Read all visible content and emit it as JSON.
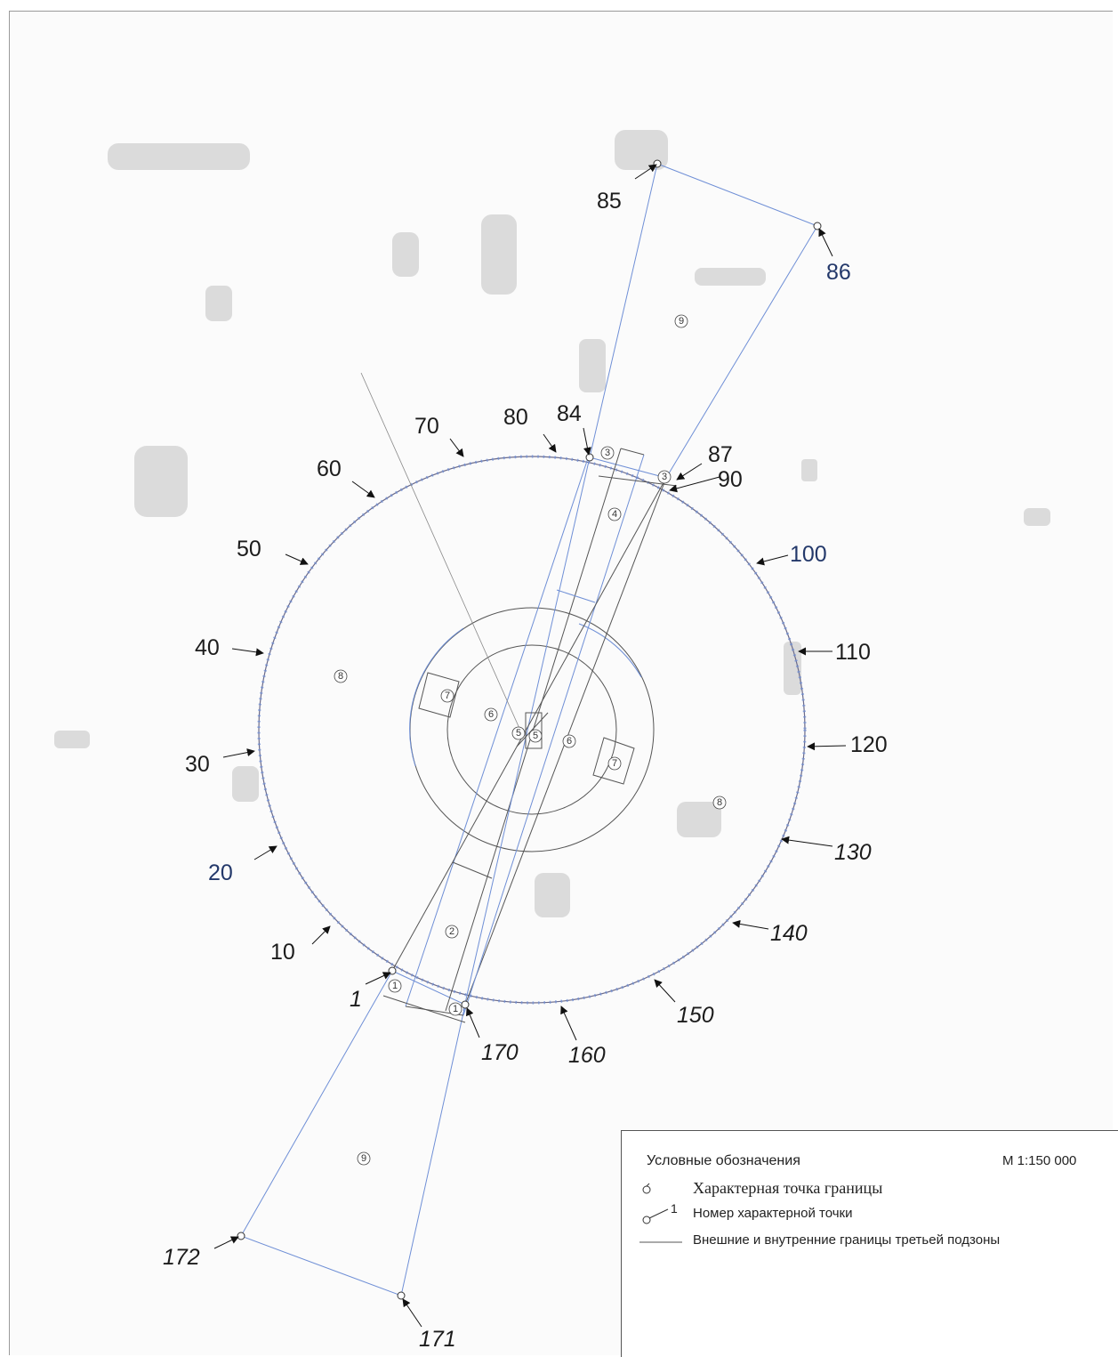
{
  "point_labels": {
    "p1": "1",
    "p10": "10",
    "p20": "20",
    "p30": "30",
    "p40": "40",
    "p50": "50",
    "p60": "60",
    "p70": "70",
    "p80": "80",
    "p84": "84",
    "p85": "85",
    "p86": "86",
    "p87": "87",
    "p90": "90",
    "p100": "100",
    "p110": "110",
    "p120": "120",
    "p130": "130",
    "p140": "140",
    "p150": "150",
    "p160": "160",
    "p170": "170",
    "p171": "171",
    "p172": "172"
  },
  "zone_numbers": {
    "z1": "1",
    "z2": "2",
    "z3": "3",
    "z4": "4",
    "z5": "5",
    "z6": "6",
    "z7": "7",
    "z8": "8",
    "z9": "9"
  },
  "legend": {
    "title": "Условные обозначения",
    "scale": "М 1:150 000",
    "boundary_point": "Характерная точка границы",
    "point_number": "Номер характерной точки",
    "point_number_sample": "1",
    "boundary_line": "Внешние и внутренние границы третьей подзоны"
  },
  "colors": {
    "boundary_blue": "#6f8fd6",
    "boundary_dark": "#555555",
    "label_blue": "#23386a"
  }
}
